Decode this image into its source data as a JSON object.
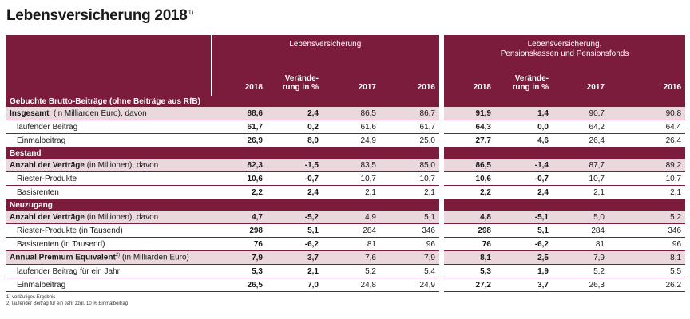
{
  "title": "Lebensversicherung 2018",
  "title_sup": "1)",
  "header": {
    "group_left": "Lebensversicherung",
    "group_right_line1": "Lebensversicherung,",
    "group_right_line2": "Pensionskassen und Pensionsfonds",
    "col_2018": "2018",
    "col_change_line1": "Verände-",
    "col_change_line2": "rung in %",
    "col_2017": "2017",
    "col_2016": "2016"
  },
  "sections": {
    "gebuchte": "Gebuchte Brutto-Beiträge (ohne Beiträge aus RfB)",
    "bestand": "Bestand",
    "neuzugang": "Neuzugang"
  },
  "rows": [
    {
      "lb": "Insgesamt",
      "ln": "  (in Milliarden Euro), davon",
      "v": [
        "88,6",
        "2,4",
        "86,5",
        "86,7",
        "91,9",
        "1,4",
        "90,7",
        "90,8"
      ]
    },
    {
      "lb": "",
      "ln": "laufender Beitrag",
      "v": [
        "61,7",
        "0,2",
        "61,6",
        "61,7",
        "64,3",
        "0,0",
        "64,2",
        "64,4"
      ]
    },
    {
      "lb": "",
      "ln": "Einmalbeitrag",
      "v": [
        "26,9",
        "8,0",
        "24,9",
        "25,0",
        "27,7",
        "4,6",
        "26,4",
        "26,4"
      ]
    },
    {
      "lb": "Anzahl der Verträge",
      "ln": " (in Millionen), davon",
      "v": [
        "82,3",
        "-1,5",
        "83,5",
        "85,0",
        "86,5",
        "-1,4",
        "87,7",
        "89,2"
      ]
    },
    {
      "lb": "",
      "ln": "Riester-Produkte",
      "v": [
        "10,6",
        "-0,7",
        "10,7",
        "10,7",
        "10,6",
        "-0,7",
        "10,7",
        "10,7"
      ]
    },
    {
      "lb": "",
      "ln": "Basisrenten",
      "v": [
        "2,2",
        "2,4",
        "2,1",
        "2,1",
        "2,2",
        "2,4",
        "2,1",
        "2,1"
      ]
    },
    {
      "lb": "Anzahl der Verträge",
      "ln": " (in Millionen), davon",
      "v": [
        "4,7",
        "-5,2",
        "4,9",
        "5,1",
        "4,8",
        "-5,1",
        "5,0",
        "5,2"
      ]
    },
    {
      "lb": "",
      "ln": "Riester-Produkte (in Tausend)",
      "v": [
        "298",
        "5,1",
        "284",
        "346",
        "298",
        "5,1",
        "284",
        "346"
      ]
    },
    {
      "lb": "",
      "ln": "Basisrenten (in Tausend)",
      "v": [
        "76",
        "-6,2",
        "81",
        "96",
        "76",
        "-6,2",
        "81",
        "96"
      ]
    },
    {
      "lb": "Annual Premium Equivalent",
      "lsup": "2)",
      "ln": " (in Milliarden Euro)",
      "v": [
        "7,9",
        "3,7",
        "7,6",
        "7,9",
        "8,1",
        "2,5",
        "7,9",
        "8,1"
      ]
    },
    {
      "lb": "",
      "ln": "laufender Beitrag für ein Jahr",
      "v": [
        "5,3",
        "2,1",
        "5,2",
        "5,4",
        "5,3",
        "1,9",
        "5,2",
        "5,5"
      ]
    },
    {
      "lb": "",
      "ln": "Einmalbeitrag",
      "v": [
        "26,5",
        "7,0",
        "24,8",
        "24,9",
        "27,2",
        "3,7",
        "26,3",
        "26,2"
      ]
    }
  ],
  "footnotes": [
    "1)  vorläufiges Ergebnis",
    "2)  laufender Beitrag für ein Jahr zzgl. 10 % Einmalbeitrag"
  ]
}
